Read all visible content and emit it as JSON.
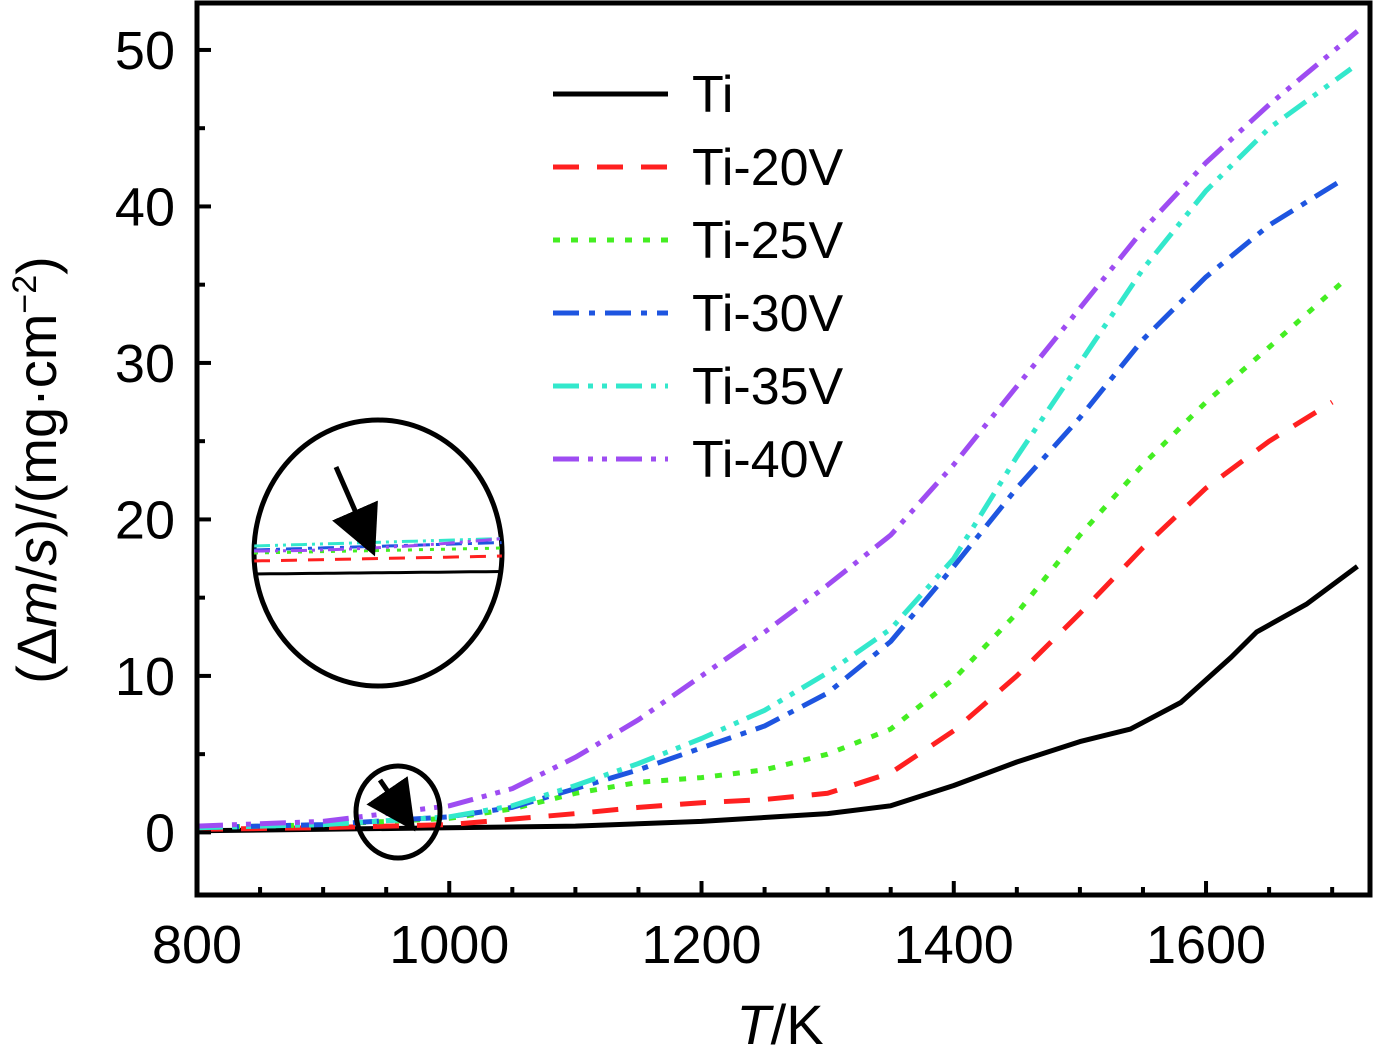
{
  "chart_data": {
    "type": "line",
    "xlabel_italic": "T",
    "xlabel_rest": "/K",
    "ylabel": {
      "open": "(Δ",
      "italic": "m",
      "slash": "/",
      "italic2": "s",
      "rest": ")/(mg·cm",
      "sup": "−2",
      "close": ")"
    },
    "xlim": [
      800,
      1730
    ],
    "ylim": [
      -4,
      53
    ],
    "xticks": [
      800,
      1000,
      1200,
      1400,
      1600
    ],
    "xticks_minor": [
      850,
      900,
      950,
      1050,
      1100,
      1150,
      1250,
      1300,
      1350,
      1450,
      1500,
      1550,
      1650,
      1700
    ],
    "yticks": [
      0,
      10,
      20,
      30,
      40,
      50
    ],
    "yticks_minor": [
      5,
      15,
      25,
      35,
      45
    ],
    "grid": false,
    "legend_position": "top-center",
    "series": [
      {
        "name": "Ti",
        "color": "#000000",
        "dash": "solid",
        "points": [
          [
            800,
            0.1
          ],
          [
            900,
            0.2
          ],
          [
            1000,
            0.3
          ],
          [
            1100,
            0.4
          ],
          [
            1200,
            0.7
          ],
          [
            1300,
            1.2
          ],
          [
            1350,
            1.7
          ],
          [
            1400,
            3.0
          ],
          [
            1450,
            4.5
          ],
          [
            1500,
            5.8
          ],
          [
            1540,
            6.6
          ],
          [
            1580,
            8.3
          ],
          [
            1620,
            11.2
          ],
          [
            1640,
            12.8
          ],
          [
            1680,
            14.6
          ],
          [
            1720,
            17.0
          ]
        ]
      },
      {
        "name": "Ti-20V",
        "color": "#ff2020",
        "dash": "dash",
        "points": [
          [
            800,
            0.2
          ],
          [
            900,
            0.3
          ],
          [
            1000,
            0.5
          ],
          [
            1100,
            1.2
          ],
          [
            1150,
            1.6
          ],
          [
            1200,
            1.9
          ],
          [
            1250,
            2.1
          ],
          [
            1300,
            2.5
          ],
          [
            1350,
            3.8
          ],
          [
            1400,
            6.5
          ],
          [
            1450,
            10.0
          ],
          [
            1500,
            14.0
          ],
          [
            1550,
            18.2
          ],
          [
            1600,
            22.0
          ],
          [
            1650,
            25.0
          ],
          [
            1700,
            27.5
          ]
        ]
      },
      {
        "name": "Ti-25V",
        "color": "#44ee22",
        "dash": "dot",
        "points": [
          [
            800,
            0.3
          ],
          [
            900,
            0.5
          ],
          [
            1000,
            0.9
          ],
          [
            1050,
            1.5
          ],
          [
            1100,
            2.5
          ],
          [
            1150,
            3.2
          ],
          [
            1200,
            3.5
          ],
          [
            1250,
            4.0
          ],
          [
            1300,
            5.0
          ],
          [
            1350,
            6.6
          ],
          [
            1400,
            9.8
          ],
          [
            1450,
            14.0
          ],
          [
            1500,
            19.0
          ],
          [
            1550,
            23.5
          ],
          [
            1600,
            27.5
          ],
          [
            1650,
            31.0
          ],
          [
            1710,
            35.3
          ]
        ]
      },
      {
        "name": "Ti-30V",
        "color": "#1e55e0",
        "dash": "dashdot",
        "points": [
          [
            800,
            0.3
          ],
          [
            900,
            0.5
          ],
          [
            1000,
            1.0
          ],
          [
            1050,
            1.6
          ],
          [
            1100,
            2.8
          ],
          [
            1150,
            4.0
          ],
          [
            1200,
            5.4
          ],
          [
            1250,
            6.8
          ],
          [
            1300,
            8.9
          ],
          [
            1350,
            12.2
          ],
          [
            1400,
            17.0
          ],
          [
            1450,
            22.0
          ],
          [
            1500,
            26.5
          ],
          [
            1550,
            31.5
          ],
          [
            1600,
            35.5
          ],
          [
            1650,
            38.8
          ],
          [
            1710,
            41.8
          ]
        ]
      },
      {
        "name": "Ti-35V",
        "color": "#33e8cc",
        "dash": "dashdotdot",
        "points": [
          [
            800,
            0.3
          ],
          [
            900,
            0.5
          ],
          [
            1000,
            1.0
          ],
          [
            1050,
            1.7
          ],
          [
            1100,
            3.0
          ],
          [
            1150,
            4.4
          ],
          [
            1200,
            6.0
          ],
          [
            1250,
            7.8
          ],
          [
            1300,
            10.2
          ],
          [
            1350,
            13.0
          ],
          [
            1400,
            17.5
          ],
          [
            1450,
            24.0
          ],
          [
            1500,
            30.0
          ],
          [
            1550,
            36.0
          ],
          [
            1600,
            41.0
          ],
          [
            1650,
            45.0
          ],
          [
            1715,
            48.8
          ]
        ]
      },
      {
        "name": "Ti-40V",
        "color": "#9e4cf2",
        "dash": "dashdotdot",
        "points": [
          [
            800,
            0.4
          ],
          [
            900,
            0.7
          ],
          [
            1000,
            1.7
          ],
          [
            1050,
            2.8
          ],
          [
            1100,
            4.8
          ],
          [
            1150,
            7.2
          ],
          [
            1200,
            10.0
          ],
          [
            1250,
            12.8
          ],
          [
            1300,
            15.8
          ],
          [
            1350,
            19.0
          ],
          [
            1400,
            23.5
          ],
          [
            1450,
            28.5
          ],
          [
            1500,
            33.5
          ],
          [
            1550,
            38.5
          ],
          [
            1600,
            42.8
          ],
          [
            1650,
            46.5
          ],
          [
            1720,
            51.2
          ]
        ]
      }
    ],
    "annotations": [
      {
        "type": "circle-marker",
        "x": 965,
        "y": 1.5,
        "label": "zoom region"
      },
      {
        "type": "inset-magnifier",
        "note": "enlarged view of lines near 965 K"
      }
    ]
  }
}
